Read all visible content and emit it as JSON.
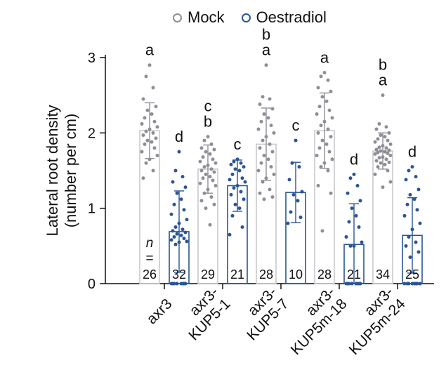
{
  "chart_data": {
    "type": "bar",
    "title": "",
    "xlabel": "",
    "ylabel": "Lateral root density (number per cm)",
    "ylabel_lines": [
      "Lateral root density",
      "(number per cm)"
    ],
    "ylim": [
      0,
      3
    ],
    "yticks": [
      "0",
      "1",
      "2",
      "3"
    ],
    "legend": {
      "position": "top-center",
      "entries": [
        "Mock",
        "Oestradiol"
      ]
    },
    "colors": {
      "Mock": "#8e8e96",
      "Oestradiol": "#2a5596",
      "axis": "#111111",
      "error_bar_mock": "#8e8e96"
    },
    "n_label": "n",
    "n_eq": "=",
    "groups": [
      {
        "label": "axr3",
        "label_lines": [
          "axr3"
        ],
        "mock": {
          "mean": 2.03,
          "sd": 0.37,
          "n": "26",
          "letters": [
            "a"
          ],
          "points": [
            2.9,
            2.75,
            2.6,
            2.45,
            2.35,
            2.3,
            2.25,
            2.2,
            2.15,
            2.12,
            2.08,
            2.05,
            2.02,
            2.0,
            1.97,
            1.93,
            1.9,
            1.88,
            1.85,
            1.8,
            1.75,
            1.7,
            1.65,
            1.6,
            1.5,
            1.4
          ]
        },
        "oestradiol": {
          "mean": 0.69,
          "sd": 0.54,
          "n": "32",
          "letters": [
            "d"
          ],
          "points": [
            1.75,
            1.5,
            1.42,
            1.35,
            1.28,
            1.2,
            1.12,
            1.05,
            0.98,
            0.92,
            0.85,
            0.8,
            0.75,
            0.72,
            0.7,
            0.68,
            0.66,
            0.64,
            0.62,
            0.6,
            0.58,
            0.56,
            0.55,
            0.52,
            0,
            0,
            0,
            0,
            0,
            0,
            0,
            0
          ]
        }
      },
      {
        "label": "axr3-KUP5-1",
        "label_lines": [
          "axr3-",
          "KUP5-1"
        ],
        "mock": {
          "mean": 1.52,
          "sd": 0.32,
          "n": "29",
          "letters": [
            "c",
            "b"
          ],
          "points": [
            1.95,
            1.9,
            1.85,
            1.8,
            1.78,
            1.75,
            1.72,
            1.68,
            1.65,
            1.62,
            1.6,
            1.57,
            1.55,
            1.52,
            1.5,
            1.48,
            1.45,
            1.42,
            1.4,
            1.37,
            1.33,
            1.3,
            1.25,
            1.2,
            1.15,
            1.1,
            1.05,
            1.0,
            0.78
          ]
        },
        "oestradiol": {
          "mean": 1.3,
          "sd": 0.34,
          "n": "21",
          "letters": [
            "c"
          ],
          "points": [
            1.65,
            1.62,
            1.6,
            1.58,
            1.55,
            1.52,
            1.5,
            1.45,
            1.4,
            1.38,
            1.35,
            1.3,
            1.27,
            1.22,
            1.18,
            1.12,
            1.05,
            1.0,
            0.9,
            0.75,
            0.65
          ]
        }
      },
      {
        "label": "axr3-KUP5-7",
        "label_lines": [
          "axr3-",
          "KUP5-7"
        ],
        "mock": {
          "mean": 1.85,
          "sd": 0.48,
          "n": "28",
          "letters": [
            "b",
            "a"
          ],
          "points": [
            2.9,
            2.48,
            2.45,
            2.38,
            2.32,
            2.25,
            2.2,
            2.15,
            2.1,
            2.05,
            2.0,
            1.95,
            1.9,
            1.85,
            1.8,
            1.75,
            1.7,
            1.65,
            1.6,
            1.55,
            1.5,
            1.45,
            1.4,
            1.35,
            1.25,
            1.2,
            1.15,
            1.12
          ]
        },
        "oestradiol": {
          "mean": 1.21,
          "sd": 0.4,
          "n": "10",
          "letters": [
            "c"
          ],
          "points": [
            1.9,
            1.6,
            1.55,
            1.38,
            1.22,
            1.18,
            1.1,
            0.95,
            0.88,
            0.8
          ]
        }
      },
      {
        "label": "axr3-KUP5m-18",
        "label_lines": [
          "axr3-",
          "KUP5m-18"
        ],
        "mock": {
          "mean": 2.03,
          "sd": 0.5,
          "n": "28",
          "letters": [
            "a"
          ],
          "points": [
            2.8,
            2.75,
            2.7,
            2.6,
            2.55,
            2.48,
            2.42,
            2.35,
            2.3,
            2.25,
            2.2,
            2.15,
            2.1,
            2.05,
            2.0,
            1.95,
            1.9,
            1.85,
            1.8,
            1.75,
            1.7,
            1.65,
            1.6,
            1.55,
            1.5,
            1.3,
            1.2,
            0.7
          ]
        },
        "oestradiol": {
          "mean": 0.52,
          "sd": 0.54,
          "n": "21",
          "letters": [
            "d"
          ],
          "points": [
            1.45,
            1.4,
            1.3,
            1.2,
            1.1,
            1.0,
            0.9,
            0.82,
            0.75,
            0.62,
            0.55,
            0.5,
            0.5,
            0,
            0,
            0,
            0,
            0,
            0,
            0,
            0
          ]
        }
      },
      {
        "label": "axr3-KUP5m-24",
        "label_lines": [
          "axr3-",
          "KUP5m-24"
        ],
        "mock": {
          "mean": 1.76,
          "sd": 0.24,
          "n": "34",
          "letters": [
            "b",
            "a"
          ],
          "points": [
            2.5,
            2.12,
            2.08,
            2.05,
            2.0,
            1.97,
            1.95,
            1.92,
            1.9,
            1.88,
            1.85,
            1.83,
            1.81,
            1.8,
            1.78,
            1.77,
            1.76,
            1.75,
            1.74,
            1.73,
            1.72,
            1.7,
            1.68,
            1.67,
            1.65,
            1.63,
            1.61,
            1.6,
            1.58,
            1.55,
            1.5,
            1.45,
            1.35,
            1.28
          ]
        },
        "oestradiol": {
          "mean": 0.64,
          "sd": 0.5,
          "n": "25",
          "letters": [
            "d"
          ],
          "points": [
            1.55,
            1.5,
            1.42,
            1.38,
            1.25,
            1.18,
            1.12,
            1.05,
            0.98,
            0.9,
            0.8,
            0.72,
            0.62,
            0.55,
            0.5,
            0.42,
            0.35,
            0,
            0,
            0,
            0,
            0,
            0,
            0,
            0
          ]
        }
      }
    ]
  }
}
